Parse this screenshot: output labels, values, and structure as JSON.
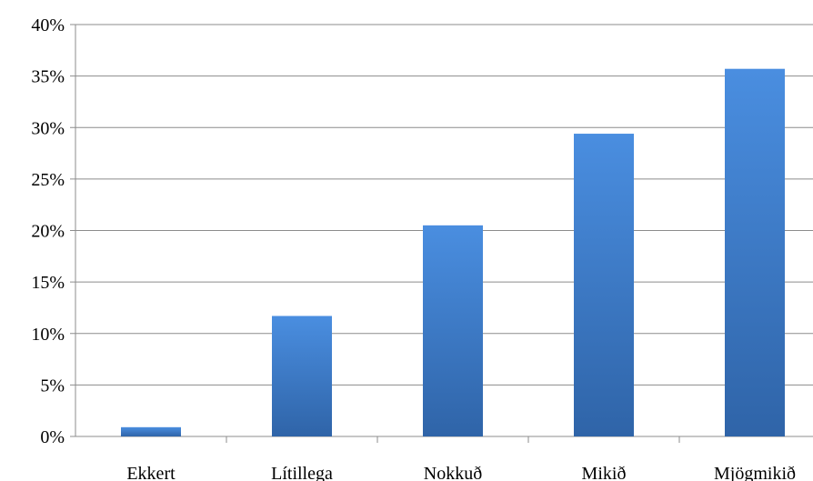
{
  "chart_data": {
    "type": "bar",
    "categories": [
      "Ekkert",
      "Lítillega",
      "Nokkuð",
      "Mikið",
      "Mjögmikið"
    ],
    "values": [
      0.9,
      11.7,
      20.5,
      29.4,
      35.7
    ],
    "y_tick_labels": [
      "0%",
      "5%",
      "10%",
      "15%",
      "20%",
      "25%",
      "30%",
      "35%",
      "40%"
    ],
    "ylim": [
      0,
      40
    ],
    "grid": true,
    "legend": "none",
    "bar_color_top": "#4a8ee0",
    "bar_color_bottom": "#2f64a8"
  }
}
